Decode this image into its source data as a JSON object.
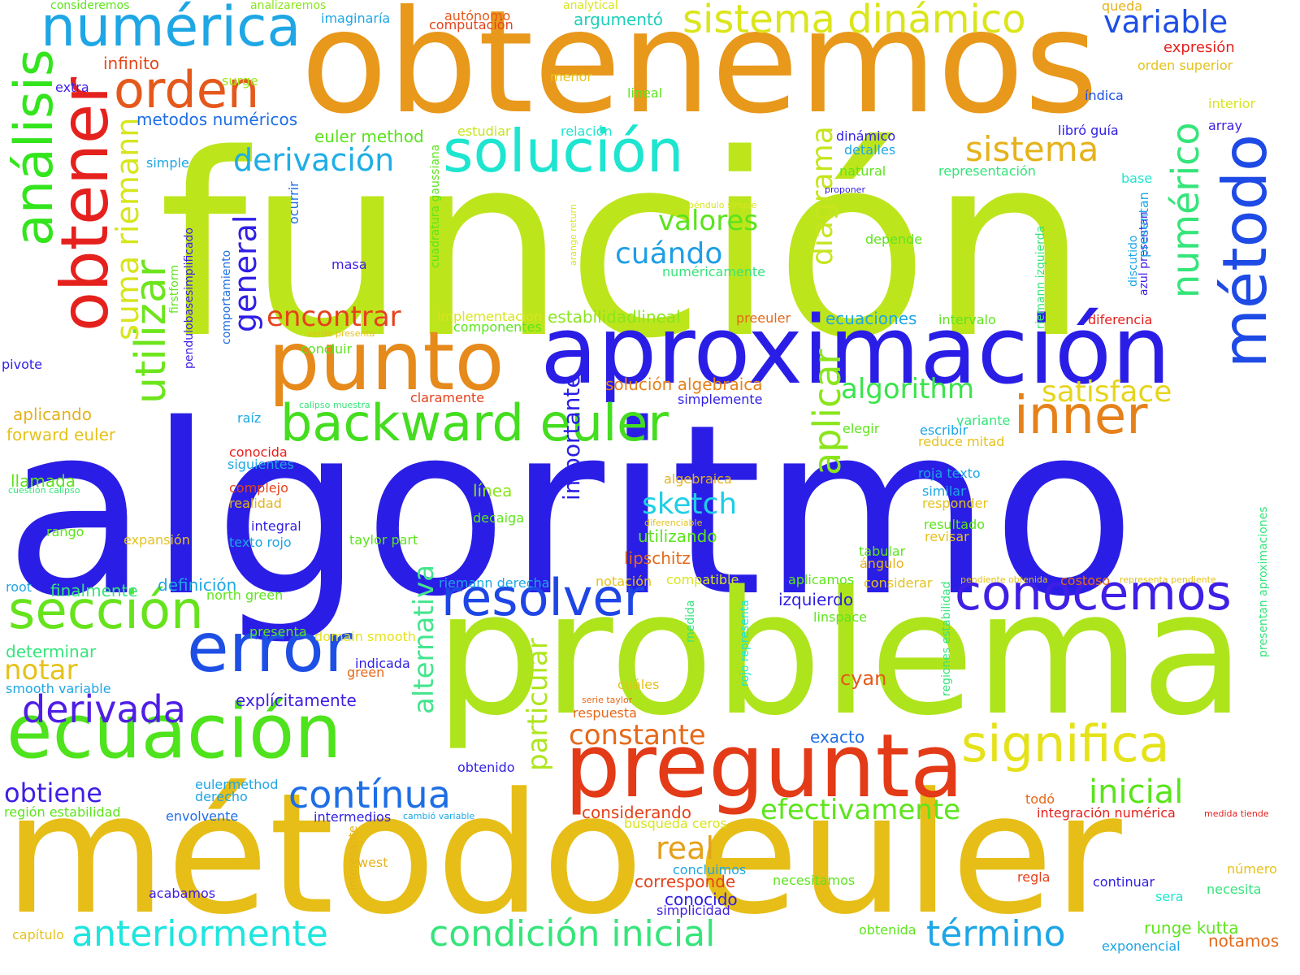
{
  "words": [
    {
      "text": "algoritmo",
      "color": "#2a1ee6",
      "vertical": false
    },
    {
      "text": "función",
      "color": "#bde51c",
      "vertical": false
    },
    {
      "text": "obtenemos",
      "color": "#e8981b",
      "vertical": false
    },
    {
      "text": "problema",
      "color": "#aee41c",
      "vertical": false
    },
    {
      "text": "método euler",
      "color": "#e6be17",
      "vertical": false
    },
    {
      "text": "aproximación",
      "color": "#2a1ee6",
      "vertical": false
    },
    {
      "text": "pregunta",
      "color": "#e33a17",
      "vertical": false
    },
    {
      "text": "punto",
      "color": "#e58a1b",
      "vertical": false
    },
    {
      "text": "ecuación",
      "color": "#4ee31c",
      "vertical": false
    },
    {
      "text": "backward euler",
      "color": "#44dd1f",
      "vertical": false
    },
    {
      "text": "solución",
      "color": "#1ee5cf",
      "vertical": false
    },
    {
      "text": "numérica",
      "color": "#1ea6e5",
      "vertical": false
    },
    {
      "text": "sistema dinámico",
      "color": "#dbe51c",
      "vertical": false
    },
    {
      "text": "error",
      "color": "#1e4fe5",
      "vertical": false
    },
    {
      "text": "resolver",
      "color": "#1e45e5",
      "vertical": false
    },
    {
      "text": "conocemos",
      "color": "#3f1ee5",
      "vertical": false
    },
    {
      "text": "inner",
      "color": "#e5811b",
      "vertical": false
    },
    {
      "text": "significa",
      "color": "#e5e21c",
      "vertical": false
    },
    {
      "text": "orden",
      "color": "#e5581b",
      "vertical": false
    },
    {
      "text": "sección",
      "color": "#66e31c",
      "vertical": false
    },
    {
      "text": "obtener",
      "color": "#e5211e",
      "vertical": true
    },
    {
      "text": "método",
      "color": "#1e4ae5",
      "vertical": true
    },
    {
      "text": "análisis",
      "color": "#33e51c",
      "vertical": true
    },
    {
      "text": "numérico",
      "color": "#35e57a",
      "vertical": true
    },
    {
      "text": "utilizar",
      "color": "#6de51c",
      "vertical": true
    },
    {
      "text": "aplicar",
      "color": "#8ae51c",
      "vertical": true
    },
    {
      "text": "alternativa",
      "color": "#44e58d",
      "vertical": true
    },
    {
      "text": "particular",
      "color": "#aee51c",
      "vertical": true
    },
    {
      "text": "suma riemann",
      "color": "#d7e51c",
      "vertical": true
    },
    {
      "text": "general",
      "color": "#2f1ee5",
      "vertical": true
    },
    {
      "text": "diagrama",
      "color": "#c6e51c",
      "vertical": true
    },
    {
      "text": "importante",
      "color": "#2a1ee6",
      "vertical": true
    },
    {
      "text": "contínua",
      "color": "#1e6ee5",
      "vertical": false
    },
    {
      "text": "derivada",
      "color": "#4f1ee5",
      "vertical": false
    },
    {
      "text": "derivación",
      "color": "#1eaee5",
      "vertical": false
    },
    {
      "text": "sistema",
      "color": "#e5b21b",
      "vertical": false
    },
    {
      "text": "variable",
      "color": "#1e4fe5",
      "vertical": false
    },
    {
      "text": "valores",
      "color": "#5be31c",
      "vertical": false
    },
    {
      "text": "encontrar",
      "color": "#e5421b",
      "vertical": false
    },
    {
      "text": "algorithm",
      "color": "#39e54b",
      "vertical": false
    },
    {
      "text": "satisface",
      "color": "#e5d51c",
      "vertical": false
    },
    {
      "text": "sketch",
      "color": "#1ecfe5",
      "vertical": false
    },
    {
      "text": "cuándo",
      "color": "#1e9ee5",
      "vertical": false
    },
    {
      "text": "constante",
      "color": "#e5691b",
      "vertical": false
    },
    {
      "text": "real",
      "color": "#e5a11b",
      "vertical": false
    },
    {
      "text": "inicial",
      "color": "#5be31c",
      "vertical": false
    },
    {
      "text": "efectivamente",
      "color": "#5de51c",
      "vertical": false
    },
    {
      "text": "condición inicial",
      "color": "#35e57a",
      "vertical": false
    },
    {
      "text": "anteriormente",
      "color": "#1ee5df",
      "vertical": false
    },
    {
      "text": "término",
      "color": "#1ea6e5",
      "vertical": false
    },
    {
      "text": "notar",
      "color": "#e5c21b",
      "vertical": false
    },
    {
      "text": "obtiene",
      "color": "#3f1ee5",
      "vertical": false
    },
    {
      "text": "euler method",
      "color": "#5be31c",
      "vertical": false
    },
    {
      "text": "metodos numéricos",
      "color": "#1e6ee5",
      "vertical": false
    },
    {
      "text": "infinito",
      "color": "#e5461b",
      "vertical": false
    },
    {
      "text": "surge",
      "color": "#9ee51c",
      "vertical": false
    },
    {
      "text": "extra",
      "color": "#3f1ee5",
      "vertical": false
    },
    {
      "text": "consideremos",
      "color": "#5de51c",
      "vertical": false
    },
    {
      "text": "analizaremos",
      "color": "#8ae51c",
      "vertical": false
    },
    {
      "text": "imaginaría",
      "color": "#1ea6e5",
      "vertical": false
    },
    {
      "text": "autónomo",
      "color": "#e5581b",
      "vertical": false
    },
    {
      "text": "computación",
      "color": "#e5421b",
      "vertical": false
    },
    {
      "text": "analytical",
      "color": "#d7e51c",
      "vertical": false
    },
    {
      "text": "argumentó",
      "color": "#1ecfb7",
      "vertical": false
    },
    {
      "text": "queda",
      "color": "#e5b21b",
      "vertical": false
    },
    {
      "text": "expresión",
      "color": "#e5211e",
      "vertical": false
    },
    {
      "text": "orden superior",
      "color": "#e5c21b",
      "vertical": false
    },
    {
      "text": "menor",
      "color": "#e5c21b",
      "vertical": false
    },
    {
      "text": "lineal",
      "color": "#5de51c",
      "vertical": false
    },
    {
      "text": "índica",
      "color": "#1e4fe5",
      "vertical": false
    },
    {
      "text": "interior",
      "color": "#d7e51c",
      "vertical": false
    },
    {
      "text": "estudiar",
      "color": "#c6e51c",
      "vertical": false
    },
    {
      "text": "relación",
      "color": "#1ee5cf",
      "vertical": false
    },
    {
      "text": "dinámico",
      "color": "#2f1ee5",
      "vertical": false
    },
    {
      "text": "detalles",
      "color": "#1ea6e5",
      "vertical": false
    },
    {
      "text": "libró guía",
      "color": "#2f1ee5",
      "vertical": false
    },
    {
      "text": "array",
      "color": "#3f1ee5",
      "vertical": false
    },
    {
      "text": "simple",
      "color": "#1ea6e5",
      "vertical": false
    },
    {
      "text": "natural",
      "color": "#5de51c",
      "vertical": false
    },
    {
      "text": "representación",
      "color": "#35e57a",
      "vertical": false
    },
    {
      "text": "base",
      "color": "#1ee5cf",
      "vertical": false
    },
    {
      "text": "proponer",
      "color": "#2f1ee5",
      "vertical": false
    },
    {
      "text": "péndulo simple",
      "color": "#d7e51c",
      "vertical": false
    },
    {
      "text": "depende",
      "color": "#5de51c",
      "vertical": false
    },
    {
      "text": "masa",
      "color": "#3f1ee5",
      "vertical": false
    },
    {
      "text": "numéricamente",
      "color": "#35e57a",
      "vertical": false
    },
    {
      "text": "ecuaciones",
      "color": "#1ea6e5",
      "vertical": false
    },
    {
      "text": "intervalo",
      "color": "#5de51c",
      "vertical": false
    },
    {
      "text": "diferencia",
      "color": "#e5211e",
      "vertical": false
    },
    {
      "text": "preeuler",
      "color": "#e5691b",
      "vertical": false
    },
    {
      "text": "estabilidadlineal",
      "color": "#8ae51c",
      "vertical": false
    },
    {
      "text": "implementacion",
      "color": "#d7e51c",
      "vertical": false
    },
    {
      "text": "componentes",
      "color": "#5de51c",
      "vertical": false
    },
    {
      "text": "verde presenta",
      "color": "#e5c21b",
      "vertical": false
    },
    {
      "text": "concluir",
      "color": "#5de51c",
      "vertical": false
    },
    {
      "text": "calipso muestra",
      "color": "#35e57a",
      "vertical": false
    },
    {
      "text": "solución algebraica",
      "color": "#e5811b",
      "vertical": false
    },
    {
      "text": "claramente",
      "color": "#e5421b",
      "vertical": false
    },
    {
      "text": "simplemente",
      "color": "#2f1ee5",
      "vertical": false
    },
    {
      "text": "pivote",
      "color": "#2f1ee5",
      "vertical": false
    },
    {
      "text": "raíz",
      "color": "#1ea6e5",
      "vertical": false
    },
    {
      "text": "aplicando",
      "color": "#e5b21b",
      "vertical": false
    },
    {
      "text": "forward euler",
      "color": "#e5c21b",
      "vertical": false
    },
    {
      "text": "conocida",
      "color": "#e5211e",
      "vertical": false
    },
    {
      "text": "siguientes",
      "color": "#1ea6e5",
      "vertical": false
    },
    {
      "text": "elegir",
      "color": "#5de51c",
      "vertical": false
    },
    {
      "text": "escribir",
      "color": "#1ea6e5",
      "vertical": false
    },
    {
      "text": "variante",
      "color": "#35e57a",
      "vertical": false
    },
    {
      "text": "reduce mitad",
      "color": "#e5c21b",
      "vertical": false
    },
    {
      "text": "llamada",
      "color": "#5de51c",
      "vertical": false
    },
    {
      "text": "cuestión calipso",
      "color": "#35e57a",
      "vertical": false
    },
    {
      "text": "complejo",
      "color": "#e5421b",
      "vertical": false
    },
    {
      "text": "realidad",
      "color": "#e5b21b",
      "vertical": false
    },
    {
      "text": "línea",
      "color": "#8ae51c",
      "vertical": false
    },
    {
      "text": "decaiga",
      "color": "#5de51c",
      "vertical": false
    },
    {
      "text": "algebraica",
      "color": "#e5b21b",
      "vertical": false
    },
    {
      "text": "roja texto",
      "color": "#1ea6e5",
      "vertical": false
    },
    {
      "text": "similar",
      "color": "#1ea6e5",
      "vertical": false
    },
    {
      "text": "responder",
      "color": "#e5c21b",
      "vertical": false
    },
    {
      "text": "integral",
      "color": "#2f1ee5",
      "vertical": false
    },
    {
      "text": "rango",
      "color": "#5de51c",
      "vertical": false
    },
    {
      "text": "expansión",
      "color": "#e5c21b",
      "vertical": false
    },
    {
      "text": "texto rojo",
      "color": "#1ea6e5",
      "vertical": false
    },
    {
      "text": "taylor part",
      "color": "#5de51c",
      "vertical": false
    },
    {
      "text": "diferenciable",
      "color": "#e5c21b",
      "vertical": false
    },
    {
      "text": "utilizando",
      "color": "#5de51c",
      "vertical": false
    },
    {
      "text": "resultado",
      "color": "#5de51c",
      "vertical": false
    },
    {
      "text": "revisar",
      "color": "#e5c21b",
      "vertical": false
    },
    {
      "text": "lipschitz",
      "color": "#e5691b",
      "vertical": false
    },
    {
      "text": "tabular",
      "color": "#5de51c",
      "vertical": false
    },
    {
      "text": "ángulo",
      "color": "#e5b21b",
      "vertical": false
    },
    {
      "text": "root",
      "color": "#1ea6e5",
      "vertical": false
    },
    {
      "text": "finalmente",
      "color": "#35e57a",
      "vertical": false
    },
    {
      "text": "definición",
      "color": "#1ea6e5",
      "vertical": false
    },
    {
      "text": "riemann derecha",
      "color": "#1ea6e5",
      "vertical": false
    },
    {
      "text": "notación",
      "color": "#e5c21b",
      "vertical": false
    },
    {
      "text": "compatible",
      "color": "#d7e51c",
      "vertical": false
    },
    {
      "text": "aplicamos",
      "color": "#5de51c",
      "vertical": false
    },
    {
      "text": "considerar",
      "color": "#e5c21b",
      "vertical": false
    },
    {
      "text": "pendiente obtenida",
      "color": "#e5c21b",
      "vertical": false
    },
    {
      "text": "costoso",
      "color": "#e5691b",
      "vertical": false
    },
    {
      "text": "representa pendiente",
      "color": "#e5c21b",
      "vertical": false
    },
    {
      "text": "north green",
      "color": "#5de51c",
      "vertical": false
    },
    {
      "text": "izquierdo",
      "color": "#2f1ee5",
      "vertical": false
    },
    {
      "text": "linspace",
      "color": "#5de51c",
      "vertical": false
    },
    {
      "text": "presenta",
      "color": "#5de51c",
      "vertical": false
    },
    {
      "text": "domain smooth",
      "color": "#e5e21c",
      "vertical": false
    },
    {
      "text": "determinar",
      "color": "#35e57a",
      "vertical": false
    },
    {
      "text": "indicada",
      "color": "#2f1ee5",
      "vertical": false
    },
    {
      "text": "green",
      "color": "#e5691b",
      "vertical": false
    },
    {
      "text": "smooth variable",
      "color": "#1ea6e5",
      "vertical": false
    },
    {
      "text": "explícitamente",
      "color": "#3f1ee5",
      "vertical": false
    },
    {
      "text": "cuáles",
      "color": "#e5c21b",
      "vertical": false
    },
    {
      "text": "serie taylor",
      "color": "#e5691b",
      "vertical": false
    },
    {
      "text": "respuesta",
      "color": "#e5691b",
      "vertical": false
    },
    {
      "text": "cyan",
      "color": "#e5581b",
      "vertical": false
    },
    {
      "text": "exacto",
      "color": "#1e6ee5",
      "vertical": false
    },
    {
      "text": "obtenido",
      "color": "#2f1ee5",
      "vertical": false
    },
    {
      "text": "eulermethod",
      "color": "#1ea6e5",
      "vertical": false
    },
    {
      "text": "derecho",
      "color": "#1ea6e5",
      "vertical": false
    },
    {
      "text": "región estabilidad",
      "color": "#5de51c",
      "vertical": false
    },
    {
      "text": "envolvente",
      "color": "#1e6ee5",
      "vertical": false
    },
    {
      "text": "intermedios",
      "color": "#2f1ee5",
      "vertical": false
    },
    {
      "text": "cambió variable",
      "color": "#1ea6e5",
      "vertical": false
    },
    {
      "text": "considerando",
      "color": "#e5421b",
      "vertical": false
    },
    {
      "text": "búsqueda ceros",
      "color": "#d7e51c",
      "vertical": false
    },
    {
      "text": "todó",
      "color": "#e5691b",
      "vertical": false
    },
    {
      "text": "integración numérica",
      "color": "#e5211e",
      "vertical": false
    },
    {
      "text": "medida tiende",
      "color": "#e5211e",
      "vertical": false
    },
    {
      "text": "west",
      "color": "#e5b21b",
      "vertical": false
    },
    {
      "text": "concluimos",
      "color": "#1ea6e5",
      "vertical": false
    },
    {
      "text": "corresponde",
      "color": "#e5421b",
      "vertical": false
    },
    {
      "text": "conocido",
      "color": "#2f1ee5",
      "vertical": false
    },
    {
      "text": "simplicidad",
      "color": "#3f1ee5",
      "vertical": false
    },
    {
      "text": "necesitamos",
      "color": "#5de51c",
      "vertical": false
    },
    {
      "text": "regla",
      "color": "#e5421b",
      "vertical": false
    },
    {
      "text": "continuar",
      "color": "#2f1ee5",
      "vertical": false
    },
    {
      "text": "número",
      "color": "#e5c21b",
      "vertical": false
    },
    {
      "text": "necesita",
      "color": "#35e57a",
      "vertical": false
    },
    {
      "text": "sera",
      "color": "#1ee5cf",
      "vertical": false
    },
    {
      "text": "acabamos",
      "color": "#3f1ee5",
      "vertical": false
    },
    {
      "text": "capítulo",
      "color": "#e5c21b",
      "vertical": false
    },
    {
      "text": "obtenida",
      "color": "#5de51c",
      "vertical": false
    },
    {
      "text": "runge kutta",
      "color": "#5de51c",
      "vertical": false
    },
    {
      "text": "notamos",
      "color": "#e5691b",
      "vertical": false
    },
    {
      "text": "exponencial",
      "color": "#1ea6e5",
      "vertical": false
    },
    {
      "text": "pendulobasesimplificado",
      "color": "#3f1ee5",
      "vertical": true
    },
    {
      "text": "firstform",
      "color": "#5de51c",
      "vertical": true
    },
    {
      "text": "comportamiento",
      "color": "#1e6ee5",
      "vertical": true
    },
    {
      "text": "ocurrir",
      "color": "#1e6ee5",
      "vertical": true
    },
    {
      "text": "cuadratura gaussiana",
      "color": "#5de51c",
      "vertical": true
    },
    {
      "text": "arange return",
      "color": "#d7e51c",
      "vertical": true
    },
    {
      "text": "riemann izquierda",
      "color": "#35e57a",
      "vertical": true
    },
    {
      "text": "discutido",
      "color": "#1ea6e5",
      "vertical": true
    },
    {
      "text": "azul presentan",
      "color": "#3f1ee5",
      "vertical": true
    },
    {
      "text": "presentan",
      "color": "#1ea6e5",
      "vertical": true
    },
    {
      "text": "interesante",
      "color": "#e5b21b",
      "vertical": true
    },
    {
      "text": "medida",
      "color": "#35e57a",
      "vertical": true
    },
    {
      "text": "rojo representa",
      "color": "#1ee5cf",
      "vertical": true
    },
    {
      "text": "regiones estabilidad",
      "color": "#35e57a",
      "vertical": true
    },
    {
      "text": "presentan aproximaciones",
      "color": "#35e57a",
      "vertical": true
    }
  ]
}
